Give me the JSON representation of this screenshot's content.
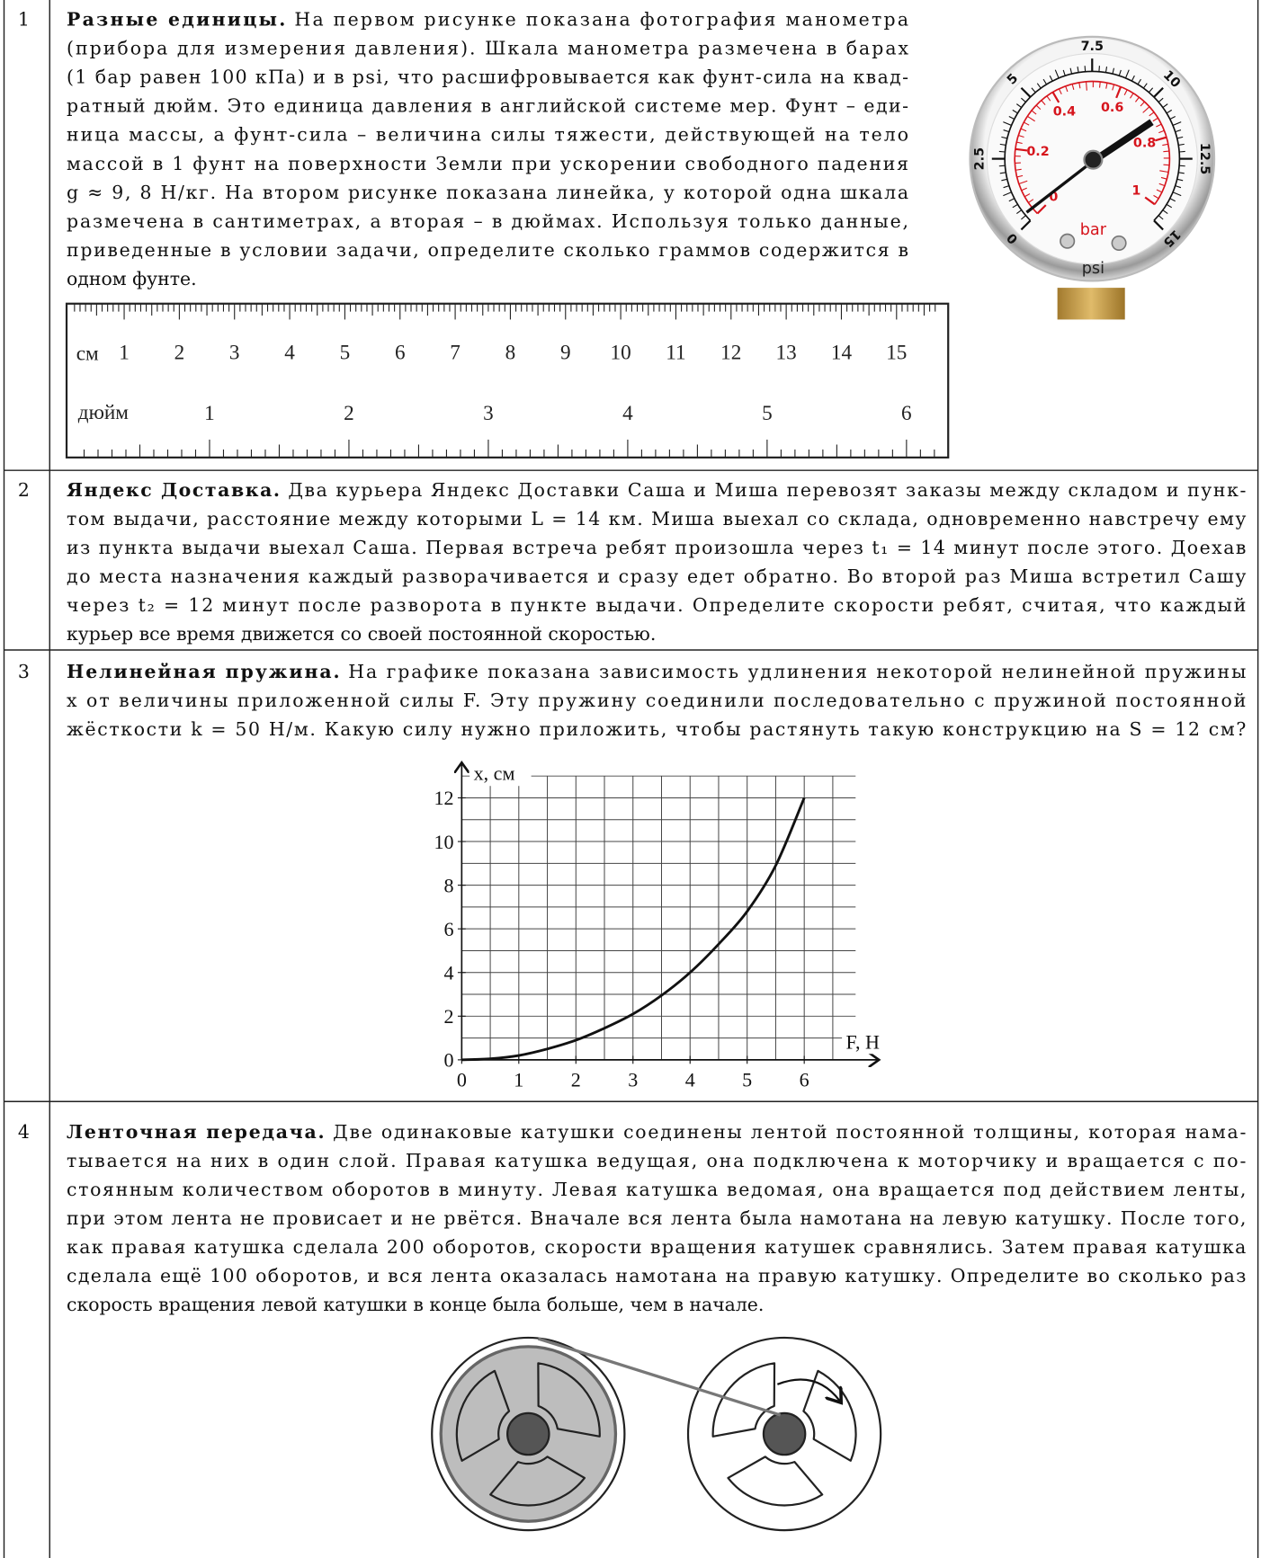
{
  "problems": [
    {
      "number": "1",
      "title": "Разные единицы.",
      "lines": [
        "На первом рисунке показана фотография манометра",
        "(прибора для измерения давления). Шкала манометра размечена в барах",
        "(1 бар равен 100 кПа) и в psi, что расшифровывается как фунт-сила на квад-",
        "ратный дюйм. Это единица давления в английской системе мер. Фунт – еди-",
        "ница массы, а фунт-сила – величина силы тяжести, действующей на тело",
        "массой в 1 фунт на поверхности Земли при ускорении свободного падения",
        "g ≈ 9, 8 Н/кг. На втором рисунке показана линейка, у которой одна шкала",
        "размечена в сантиметрах, а вторая – в дюймах. Используя только данные,",
        "приведенные в условии задачи, определите сколько граммов содержится в",
        "одном фунте."
      ],
      "gauge": {
        "psi_labels": [
          0,
          2.5,
          5,
          7.5,
          10,
          12.5,
          15
        ],
        "bar_labels": [
          0,
          0.2,
          0.4,
          0.6,
          0.8,
          1
        ],
        "bar_unit": "bar",
        "psi_unit": "psi"
      },
      "ruler": {
        "cm_unit": "см",
        "cm_labels": [
          1,
          2,
          3,
          4,
          5,
          6,
          7,
          8,
          9,
          10,
          11,
          12,
          13,
          14,
          15
        ],
        "inch_unit": "дюйм",
        "inch_labels": [
          1,
          2,
          3,
          4,
          5,
          6
        ]
      }
    },
    {
      "number": "2",
      "title": "Яндекс Доставка.",
      "lines": [
        "Два курьера Яндекс Доставки Саша и Миша перевозят заказы между складом и пунк-",
        "том выдачи, расстояние между которыми L = 14 км. Миша выехал со склада, одновременно навстречу ему",
        "из пункта выдачи выехал Саша. Первая встреча ребят произошла через t₁ = 14 минут после этого. Доехав",
        "до места назначения каждый разворачивается и сразу едет обратно. Во второй раз Миша встретил Сашу",
        "через t₂ = 12 минут после разворота в пункте выдачи. Определите скорости ребят, считая, что каждый",
        "курьер все время движется со своей постоянной скоростью."
      ]
    },
    {
      "number": "3",
      "title": "Нелинейная пружина.",
      "lines": [
        "На графике показана зависимость удлинения некоторой нелинейной пружины",
        "x от величины приложенной силы F. Эту пружину соединили последовательно с пружиной постоянной",
        "жёсткости k = 50 Н/м. Какую силу нужно приложить, чтобы растянуть такую конструкцию на S = 12 см?"
      ],
      "chart": {
        "type": "line",
        "x_label": "F, Н",
        "y_label": "x, см",
        "x": [
          0,
          0.5,
          1,
          1.5,
          2,
          2.5,
          3,
          3.5,
          4,
          4.5,
          5,
          5.5,
          6
        ],
        "values": [
          0,
          0.05,
          0.2,
          0.5,
          0.9,
          1.45,
          2.1,
          2.95,
          4.0,
          5.3,
          6.8,
          8.9,
          12
        ],
        "xlim": [
          0,
          6.9
        ],
        "ylim": [
          0,
          13
        ],
        "xticks": [
          0,
          1,
          2,
          3,
          4,
          5,
          6
        ],
        "yticks": [
          0,
          2,
          4,
          6,
          8,
          10,
          12
        ],
        "grid": true,
        "color": "#111111"
      }
    },
    {
      "number": "4",
      "title": "Ленточная передача.",
      "lines": [
        "Две одинаковые катушки соединены лентой постоянной толщины, которая нама-",
        "тывается на них в один слой. Правая катушка ведущая, она подключена к моторчику и вращается с по-",
        "стоянным количеством оборотов в минуту. Левая катушка ведомая, она вращается под действием ленты,",
        "при этом лента не провисает и не рвётся. Вначале вся лента была намотана на левую катушку. После того,",
        "как правая катушка сделала 200 оборотов, скорости вращения катушек сравнялись. Затем правая катушка",
        "сделала ещё 100 оборотов, и вся лента оказалась намотана на правую катушку. Определите во сколько раз",
        "скорость вращения левой катушки в конце была больше, чем в начале."
      ]
    }
  ]
}
